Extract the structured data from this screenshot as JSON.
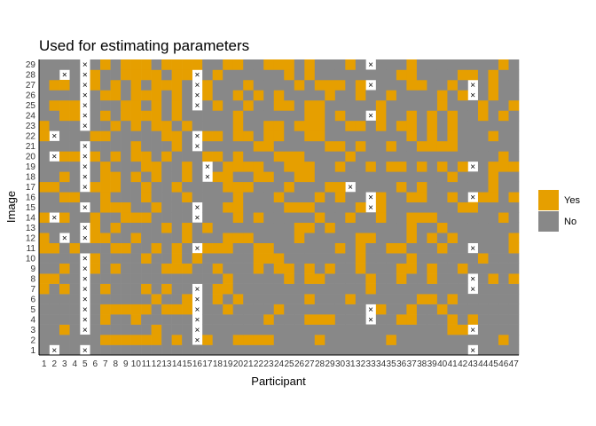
{
  "chart_data": {
    "type": "heatmap",
    "title": "Used for estimating parameters",
    "xlabel": "Participant",
    "ylabel": "Image",
    "x_categories": [
      "1",
      "2",
      "3",
      "4",
      "5",
      "6",
      "7",
      "8",
      "9",
      "10",
      "11",
      "12",
      "13",
      "14",
      "15",
      "16",
      "17",
      "18",
      "19",
      "20",
      "21",
      "22",
      "23",
      "24",
      "25",
      "26",
      "27",
      "28",
      "29",
      "30",
      "31",
      "32",
      "33",
      "34",
      "35",
      "36",
      "37",
      "38",
      "39",
      "40",
      "41",
      "42",
      "43",
      "44",
      "45",
      "46",
      "47"
    ],
    "y_categories": [
      "1",
      "2",
      "3",
      "4",
      "5",
      "6",
      "7",
      "8",
      "9",
      "10",
      "11",
      "12",
      "13",
      "14",
      "15",
      "16",
      "17",
      "18",
      "19",
      "20",
      "21",
      "22",
      "23",
      "24",
      "25",
      "26",
      "27",
      "28",
      "29"
    ],
    "legend": [
      {
        "label": "Yes",
        "color": "#E69F00"
      },
      {
        "label": "No",
        "color": "#888888"
      }
    ],
    "legend_position": "right",
    "colors": {
      "yes": "#E69F00",
      "no": "#888888",
      "excluded": "#ffffff"
    },
    "excluded_marker": "×",
    "rows": {
      "29": "NNNNNNYNYYYNYYYYNNYYNNYYYNYNNNYNNNNNYNNNNNNNNYN",
      "28": "NNNNNYNNYYYYNYYNNYNNNNNNYNYNNNNNNNNYYNNNNYYNYNN",
      "27": "NYYNNYNYNYNYYYNNYNNNYNNNNYNYYYNYNNNNYYNNYNNNYNN",
      "26": "NNNNNNYYNYYYNYNNYNNYNYNYNNNNYNNYNNYNNNNYNYNNYNN",
      "25": "NYYYNNNNYYNYNYNNNYNNYNNYYNYYNNNNNYNNNNNYNNNYNNY",
      "24": "NNYYNNYNYYYYNYNNNNNYNNNNNNYYNYNNNYNNYNYNYNNYNYN",
      "23": "YNNNNNNYNYNYYNYNNNNYNNYYNYYYNNYYNYNYYNYNYNNNNNN",
      "22": "YNNNNYYNNNNNYYNNYYNYYNYYNNYYNNNNNNNNYNYNYNNNYNN",
      "21": "NNNNNNNNNYNNNYNNNNNNNYYNNNNNYYNYNNYNNYYYYNNNNNN",
      "20": "NNYYNYNYNYYNYNNNYYNYNNNYYYNNNNYNNNNNNNNNNNNNNYN",
      "19": "NNNNNNYNNNYYNNYNYNYYYYNNYYYNNYNNYNYYNYNYNYYNYYY",
      "18": "NNYNNNYYNYNYNNYNNYYNNYYNNYYNNNNNNNNNNNNNYNNNYNN",
      "17": "YYNNNYYYNNYNNYNNNNYYYNNNYNNNYYYNNNNYNYNNNNNNYNN",
      "16": "NNYYNNYNNNYNNNYNNNNYNNNYNNNYNYNNNYNNYYNNYNNYYNY",
      "15": "NNNNNNYYYNNYNNNNNNYYNNNNYYYNNNNYNYNNNNNNNYYNNNN",
      "14": "YNYNNYNNYYYNNNNNNNNYNYNNNNNYNNYNNYNNYYYNNNNNNYN",
      "13": "NNNNNYNYNNNNYNYNYNNNNNNNNYYNYNNNNNNNYNNYNNNNNNN",
      "12": "YNNNNYYNNYNNNNYNNNYYYNNNNYNNNNNYYNNNYNYNYNNNNNY",
      "11": "YYNYNNNYYNNYNYNNYYYNNYYNNNNNNYNYNNYYNNNYNNNNNNY",
      "10": "NNNNNYNNNNYNNYNYNNNNNYYYNNNNNNNYNNNNYNNNNNNYNNN",
      "9": "NNYNNYNYNNNNYYYNNYNNNYNYYNYNYNNYNNNYYNYNNYNNNNN",
      "8": "YYNNNNNNNNNNNNNNNNYNNNNNYNYYNNNNYNNYNNYNNNNNYNY",
      "7": "YNYNNNYNNNYNYNNNNYYNNNNNNNNNNNNNYNNNNNNNNNNNNNN",
      "6": "NNNNNNNNNNNYNNYNNYNYNNNNNNYNNNYNNNNNNYYNYNNNNNN",
      "5": "NNNNNNYYYYYNYYYNNNYNNNNYNNNNNNNNYYNNYNNYNNNNNNN",
      "4": "NNNNNNYNNYNNNNNNNNNNNNYNNNYYYNNNYNNYYNNNYNYNNNN",
      "3": "NNYNNNNNNNNYNNNNNNNNNNNNNNNNNNNNNNNNNNNNYYNNNNN",
      "2": "NNNNNNYYYYYYNYNYYNNYYYYNNNNYNNNNNNYNNNNNNNNNNYN",
      "1": "NNNNNNNNNNNNNNNNNNNNNNNNNNNNNNNNNNNNNNNNNNNNNNN"
    },
    "excluded_cells": [
      [
        "5",
        "29"
      ],
      [
        "33",
        "29"
      ],
      [
        "3",
        "28"
      ],
      [
        "5",
        "28"
      ],
      [
        "16",
        "28"
      ],
      [
        "5",
        "27"
      ],
      [
        "16",
        "27"
      ],
      [
        "33",
        "27"
      ],
      [
        "43",
        "27"
      ],
      [
        "5",
        "26"
      ],
      [
        "16",
        "26"
      ],
      [
        "43",
        "26"
      ],
      [
        "5",
        "25"
      ],
      [
        "16",
        "25"
      ],
      [
        "5",
        "24"
      ],
      [
        "33",
        "24"
      ],
      [
        "5",
        "23"
      ],
      [
        "2",
        "22"
      ],
      [
        "16",
        "22"
      ],
      [
        "5",
        "21"
      ],
      [
        "16",
        "21"
      ],
      [
        "2",
        "20"
      ],
      [
        "5",
        "20"
      ],
      [
        "5",
        "19"
      ],
      [
        "17",
        "19"
      ],
      [
        "43",
        "19"
      ],
      [
        "5",
        "18"
      ],
      [
        "17",
        "18"
      ],
      [
        "5",
        "17"
      ],
      [
        "31",
        "17"
      ],
      [
        "33",
        "16"
      ],
      [
        "43",
        "16"
      ],
      [
        "5",
        "15"
      ],
      [
        "16",
        "15"
      ],
      [
        "33",
        "15"
      ],
      [
        "2",
        "14"
      ],
      [
        "16",
        "14"
      ],
      [
        "5",
        "13"
      ],
      [
        "3",
        "12"
      ],
      [
        "5",
        "12"
      ],
      [
        "16",
        "11"
      ],
      [
        "43",
        "11"
      ],
      [
        "5",
        "10"
      ],
      [
        "5",
        "9"
      ],
      [
        "5",
        "8"
      ],
      [
        "43",
        "8"
      ],
      [
        "5",
        "7"
      ],
      [
        "16",
        "7"
      ],
      [
        "43",
        "7"
      ],
      [
        "5",
        "6"
      ],
      [
        "16",
        "6"
      ],
      [
        "5",
        "5"
      ],
      [
        "16",
        "5"
      ],
      [
        "33",
        "5"
      ],
      [
        "5",
        "4"
      ],
      [
        "16",
        "4"
      ],
      [
        "33",
        "4"
      ],
      [
        "5",
        "3"
      ],
      [
        "16",
        "3"
      ],
      [
        "43",
        "3"
      ],
      [
        "16",
        "2"
      ],
      [
        "2",
        "1"
      ],
      [
        "5",
        "1"
      ],
      [
        "43",
        "1"
      ]
    ]
  }
}
